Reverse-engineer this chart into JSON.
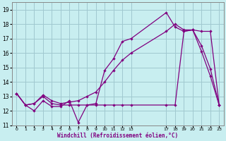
{
  "xlabel": "Windchill (Refroidissement éolien,°C)",
  "bg_color": "#c8eef0",
  "grid_color": "#a0c8d0",
  "line_color": "#800080",
  "ylim": [
    11,
    19.5
  ],
  "yticks": [
    11,
    12,
    13,
    14,
    15,
    16,
    17,
    18,
    19
  ],
  "series1_x": [
    0,
    1,
    2,
    3,
    4,
    5,
    6,
    7,
    8,
    9,
    10,
    11,
    12,
    13,
    17,
    18,
    19,
    20,
    21,
    22,
    23
  ],
  "series1_y": [
    13.2,
    12.4,
    12.0,
    12.7,
    12.3,
    12.3,
    12.7,
    11.2,
    12.4,
    12.5,
    14.8,
    15.6,
    16.8,
    17.0,
    18.8,
    17.8,
    17.5,
    17.6,
    16.1,
    14.4,
    12.4
  ],
  "series2_x": [
    0,
    1,
    2,
    3,
    4,
    5,
    6,
    7,
    8,
    9,
    10,
    11,
    12,
    13,
    17,
    18,
    19,
    20,
    21,
    22,
    23
  ],
  "series2_y": [
    13.2,
    12.4,
    12.5,
    13.0,
    12.5,
    12.4,
    12.4,
    12.4,
    12.4,
    12.4,
    12.4,
    12.4,
    12.4,
    12.4,
    12.4,
    12.4,
    17.5,
    17.6,
    17.5,
    17.5,
    12.4
  ],
  "series3_x": [
    0,
    1,
    2,
    3,
    4,
    5,
    6,
    7,
    8,
    9,
    10,
    11,
    12,
    13,
    17,
    18,
    19,
    20,
    21,
    22,
    23
  ],
  "series3_y": [
    13.2,
    12.4,
    12.5,
    13.1,
    12.7,
    12.5,
    12.6,
    12.7,
    13.0,
    13.3,
    14.0,
    14.8,
    15.5,
    16.0,
    17.5,
    18.0,
    17.6,
    17.6,
    16.5,
    14.9,
    12.4
  ],
  "xtick_vals": [
    0,
    1,
    2,
    3,
    4,
    5,
    6,
    7,
    8,
    9,
    10,
    11,
    12,
    13,
    17,
    18,
    19,
    20,
    21,
    22,
    23
  ],
  "xtick_labels": [
    "0",
    "1",
    "2",
    "3",
    "4",
    "5",
    "6",
    "7",
    "8",
    "9",
    "10",
    "11",
    "12",
    "13",
    "17",
    "18",
    "19",
    "20",
    "21",
    "22",
    "23"
  ]
}
